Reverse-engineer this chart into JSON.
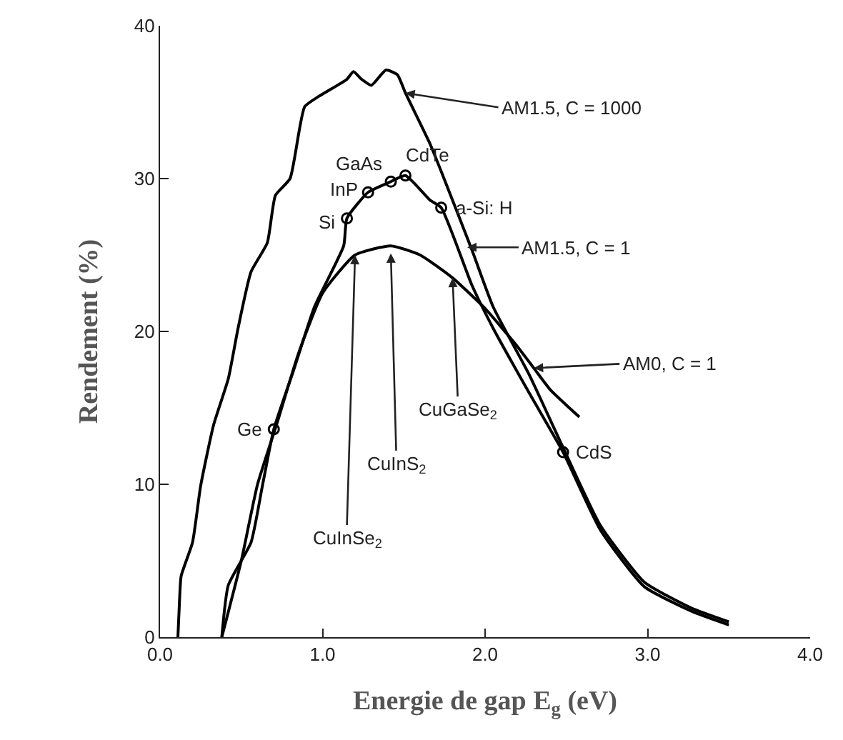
{
  "chart_data": {
    "type": "line",
    "xlabel": "Energie de gap E$_{g}$ (eV)",
    "ylabel": "Rendement (%)",
    "xlim": [
      0,
      4
    ],
    "ylim": [
      0,
      40
    ],
    "xticks": [
      {
        "value": 0,
        "label": "0.0"
      },
      {
        "value": 1,
        "label": "1.0"
      },
      {
        "value": 2,
        "label": "2.0"
      },
      {
        "value": 3,
        "label": "3.0"
      },
      {
        "value": 4,
        "label": "4.0"
      }
    ],
    "yticks": [
      0,
      10,
      20,
      30,
      40
    ],
    "series": [
      {
        "color": "#000000",
        "x": [
          0.11,
          0.12,
          0.13,
          0.2,
          0.25,
          0.33,
          0.42,
          0.48,
          0.56,
          0.66,
          0.71,
          0.8,
          0.89,
          0.98,
          1.15,
          1.19,
          1.24,
          1.3,
          1.39,
          1.46,
          1.51,
          1.66,
          1.74,
          1.92,
          2.05,
          2.27,
          2.48,
          2.71,
          2.98,
          3.27,
          3.5
        ],
        "values": [
          0,
          2.4,
          4.0,
          6.2,
          9.9,
          13.9,
          16.9,
          20.2,
          23.9,
          25.8,
          28.9,
          30.0,
          34.7,
          35.4,
          36.5,
          37.0,
          36.5,
          36.1,
          37.1,
          36.8,
          35.6,
          32.3,
          30.2,
          25.3,
          21.6,
          17.2,
          12.4,
          7.3,
          3.6,
          1.9,
          1.0
        ]
      },
      {
        "color": "#000000",
        "x": [
          0.38,
          0.42,
          0.56,
          0.63,
          0.7,
          0.82,
          0.95,
          1.13,
          1.15,
          1.28,
          1.42,
          1.51,
          1.66,
          1.73,
          1.92,
          2.05,
          2.27,
          2.48,
          2.71,
          2.98,
          3.27,
          3.5
        ],
        "values": [
          0,
          3.4,
          6.2,
          9.9,
          13.6,
          17.4,
          21.6,
          25.6,
          27.4,
          29.1,
          29.8,
          30.2,
          28.6,
          28.1,
          23.0,
          20.2,
          16.0,
          12.1,
          7.0,
          3.3,
          1.7,
          0.8
        ]
      },
      {
        "color": "#000000",
        "x": [
          0.38,
          0.5,
          0.6,
          0.72,
          0.85,
          1.0,
          1.2,
          1.42,
          1.6,
          1.8,
          2.0,
          2.2,
          2.3,
          2.4,
          2.58
        ],
        "values": [
          0,
          5,
          10,
          14,
          18.5,
          22.5,
          25,
          25.6,
          25,
          23.5,
          21.5,
          19,
          17.6,
          16.2,
          14.4
        ]
      },
      {
        "type": "scatter",
        "marker": "circle",
        "color": "#000000",
        "x": [
          0.7,
          1.15,
          1.28,
          1.42,
          1.51,
          1.73,
          2.48
        ],
        "values": [
          13.6,
          27.4,
          29.1,
          29.8,
          30.2,
          28.1,
          12.1
        ]
      }
    ],
    "annotations": [
      {
        "text": "AM1.5, C = 1000",
        "x": 1.51,
        "y": 35.6
      },
      {
        "text": "AM1.5, C = 1",
        "x": 1.89,
        "y": 25.5
      },
      {
        "text": "AM0, C = 1",
        "x": 2.3,
        "y": 17.6
      },
      {
        "text": "CuInSe$_{2}$",
        "x": 1.2,
        "y": 25
      },
      {
        "text": "CuInS$_{2}$",
        "x": 1.42,
        "y": 25.1
      },
      {
        "text": "CuGaSe$_{2}$",
        "x": 1.8,
        "y": 23.5
      },
      {
        "text": "Ge",
        "x": 0.7,
        "y": 13.6
      },
      {
        "text": "Si",
        "x": 1.15,
        "y": 27.4
      },
      {
        "text": "InP",
        "x": 1.28,
        "y": 29.1
      },
      {
        "text": "GaAs",
        "x": 1.42,
        "y": 29.8
      },
      {
        "text": "CdTe",
        "x": 1.51,
        "y": 30.2
      },
      {
        "text": "a-Si: H",
        "x": 1.73,
        "y": 28.1
      },
      {
        "text": "CdS",
        "x": 2.48,
        "y": 12.1
      }
    ]
  }
}
